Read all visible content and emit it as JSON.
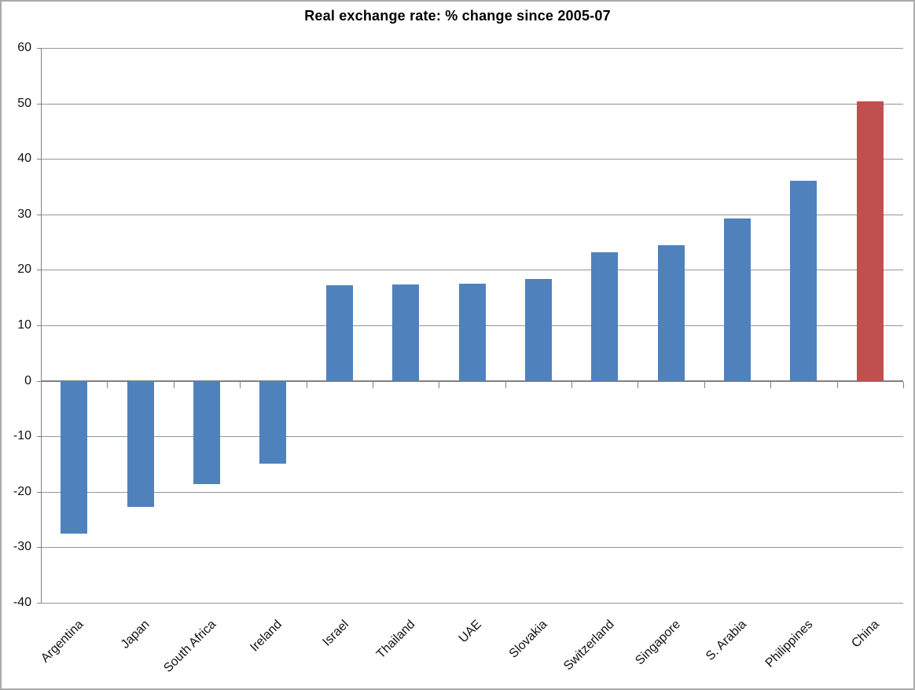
{
  "chart_data": {
    "type": "bar",
    "title": "Real exchange rate: % change since 2005-07",
    "categories": [
      "Argentina",
      "Japan",
      "South Africa",
      "Ireland",
      "Israel",
      "Thailand",
      "UAE",
      "Slovakia",
      "Switzerland",
      "Singapore",
      "S. Arabia",
      "Philippines",
      "China"
    ],
    "values": [
      -27.5,
      -22.7,
      -18.6,
      -14.9,
      17.2,
      17.4,
      17.5,
      18.4,
      23.2,
      24.4,
      29.2,
      36.0,
      50.4
    ],
    "xlabel": "",
    "ylabel": "",
    "ylim": [
      -40,
      60
    ],
    "ytick_step": 10,
    "ytick_labels": [
      "60",
      "50",
      "40",
      "30",
      "20",
      "10",
      "0",
      "-10",
      "-20",
      "-30",
      "-40"
    ],
    "grid": true,
    "legend": "none",
    "bar_color": "#4F81BD",
    "highlight": {
      "category": "China",
      "color": "#C0504D"
    },
    "colors": {
      "gridline": "#969696",
      "axis": "#808080",
      "text": "#111111",
      "title_text": "#000000",
      "background": "#FFFFFF",
      "frame_border": "#ABABAB"
    }
  }
}
